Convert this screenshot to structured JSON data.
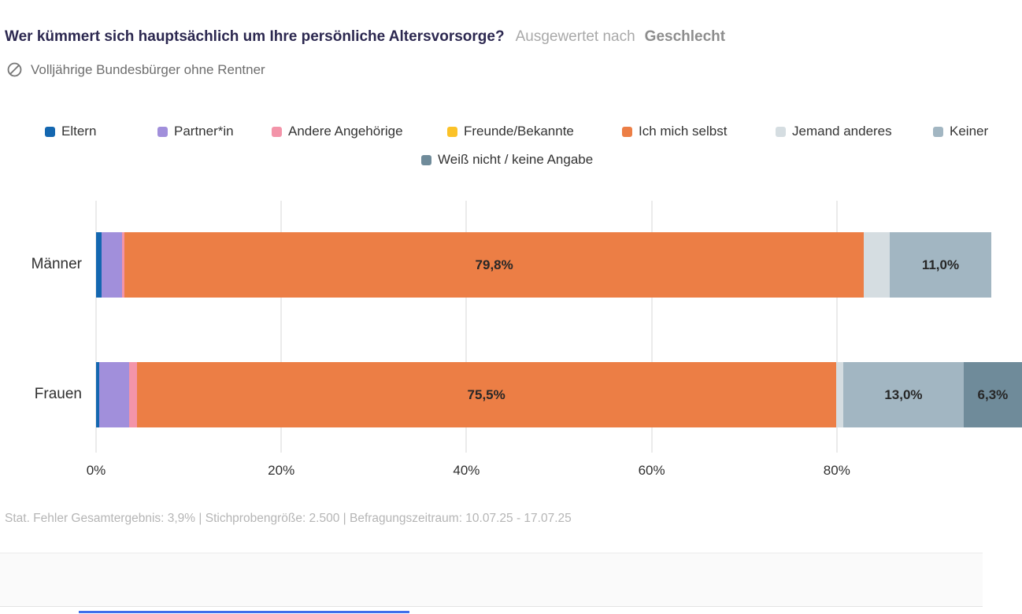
{
  "header": {
    "title": "Wer kümmert sich hauptsächlich um Ihre persönliche Altersvorsorge?",
    "analysis_prefix": "Ausgewertet nach",
    "analysis_dimension": "Geschlecht",
    "subtitle": "Volljährige Bundesbürger ohne Rentner",
    "subtitle_icon": "circle-slash-icon"
  },
  "colors": {
    "title_text": "#2c2850",
    "muted_text": "#a9a9a9",
    "dimension_text": "#8d8d8d",
    "subtitle_text": "#6e6e6e",
    "legend_text": "#333333",
    "grid": "#ebebeb",
    "bar_label_text": "#272727",
    "footer_text": "#b5b5b5",
    "bottom_band": "#fafafa",
    "progress_blue": "#3f6fec"
  },
  "chart_data": {
    "type": "bar",
    "orientation": "horizontal",
    "stacked": true,
    "unit": "%",
    "categories": [
      "Männer",
      "Frauen"
    ],
    "xlim": [
      0,
      100
    ],
    "x_ticks": [
      "0%",
      "20%",
      "40%",
      "60%",
      "80%"
    ],
    "x_tick_values": [
      0,
      20,
      40,
      60,
      80
    ],
    "grid": true,
    "legend_position": "top",
    "series": [
      {
        "name": "Eltern",
        "color": "#1467b0",
        "values": [
          0.6,
          0.3
        ],
        "labels": [
          "",
          ""
        ]
      },
      {
        "name": "Partner*in",
        "color": "#a18fdb",
        "values": [
          2.2,
          3.3
        ],
        "labels": [
          "",
          ""
        ]
      },
      {
        "name": "Andere Angehörige",
        "color": "#f394a9",
        "values": [
          0.3,
          0.8
        ],
        "labels": [
          "",
          ""
        ]
      },
      {
        "name": "Freunde/Bekannte",
        "color": "#fbc228",
        "values": [
          0,
          0
        ],
        "labels": [
          "",
          ""
        ]
      },
      {
        "name": "Ich mich selbst",
        "color": "#ec7e45",
        "values": [
          79.8,
          75.5
        ],
        "labels": [
          "79,8%",
          "75,5%"
        ]
      },
      {
        "name": "Jemand anderes",
        "color": "#d5dde1",
        "values": [
          2.8,
          0.8
        ],
        "labels": [
          "",
          ""
        ]
      },
      {
        "name": "Keiner",
        "color": "#a2b6c2",
        "values": [
          11.0,
          13.0
        ],
        "labels": [
          "11,0%",
          "13,0%"
        ]
      },
      {
        "name": "Weiß nicht / keine Angabe",
        "color": "#6f8b9a",
        "values": [
          0,
          6.3
        ],
        "labels": [
          "",
          "6,3%"
        ]
      }
    ]
  },
  "footer": {
    "text": "Stat. Fehler Gesamtergebnis: 3,9% | Stichprobengröße: 2.500 | Befragungszeitraum: 10.07.25 - 17.07.25"
  }
}
